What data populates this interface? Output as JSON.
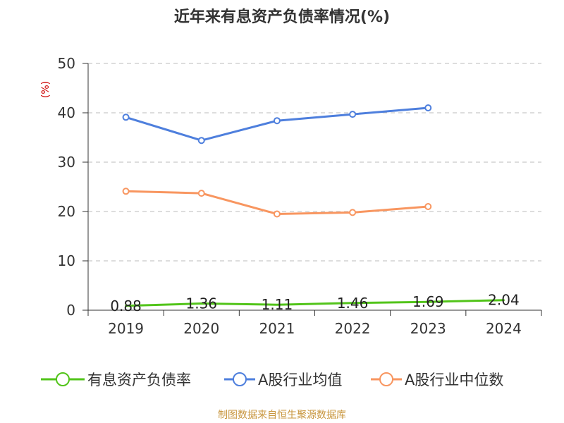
{
  "title": "近年来有息资产负债率情况(%)",
  "source_text": "制图数据来自恒生聚源数据库",
  "colors": {
    "series_1": "#52c41a",
    "series_2": "#4e7fdd",
    "series_3": "#f89660",
    "grid": "#bbbbbb",
    "axis": "#333333",
    "unit": "#cc0000",
    "source": "#c8963e"
  },
  "chart_data": {
    "type": "line",
    "title": "近年来有息资产负债率情况(%)",
    "ylabel": "(%)",
    "xlabel": "",
    "categories": [
      "2019",
      "2020",
      "2021",
      "2022",
      "2023",
      "2024"
    ],
    "ylim": [
      0,
      50
    ],
    "yticks": [
      "0",
      "10",
      "20",
      "30",
      "40",
      "50"
    ],
    "grid": "horizontal dashed",
    "legend": "bottom",
    "series": [
      {
        "name": "有息资产负债率",
        "color": "#52c41a",
        "values": [
          0.88,
          1.36,
          1.11,
          1.46,
          1.69,
          2.04
        ],
        "labels": [
          "0.88",
          "1.36",
          "1.11",
          "1.46",
          "1.69",
          "2.04"
        ]
      },
      {
        "name": "A股行业均值",
        "color": "#4e7fdd",
        "values": [
          39.1,
          34.4,
          38.4,
          39.7,
          41.0,
          null
        ]
      },
      {
        "name": "A股行业中位数",
        "color": "#f89660",
        "values": [
          24.1,
          23.7,
          19.5,
          19.8,
          21.0,
          null
        ]
      }
    ]
  }
}
